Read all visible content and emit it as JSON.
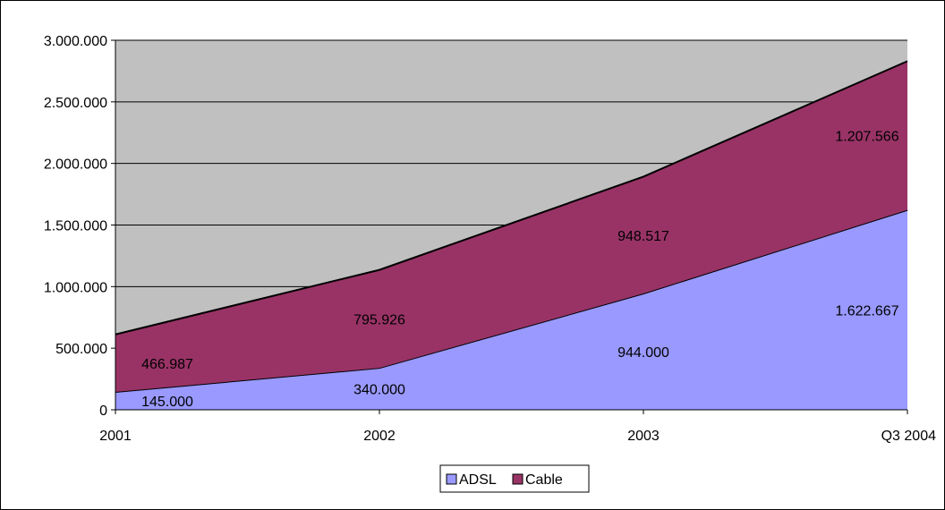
{
  "chart_data": {
    "type": "area",
    "stacked": true,
    "categories": [
      "2001",
      "2002",
      "2003",
      "Q3 2004"
    ],
    "series": [
      {
        "name": "ADSL",
        "values": [
          145000,
          340000,
          944000,
          1622667
        ],
        "labels": [
          "145.000",
          "340.000",
          "944.000",
          "1.622.667"
        ]
      },
      {
        "name": "Cable",
        "values": [
          466987,
          795926,
          948517,
          1207566
        ],
        "labels": [
          "466.987",
          "795.926",
          "948.517",
          "1.207.566"
        ]
      }
    ],
    "ylim": [
      0,
      3000000
    ],
    "y_ticks": [
      0,
      500000,
      1000000,
      1500000,
      2000000,
      2500000,
      3000000
    ],
    "y_tick_labels": [
      "0",
      "500.000",
      "1.000.000",
      "1.500.000",
      "2.000.000",
      "2.500.000",
      "3.000.000"
    ],
    "grid": true,
    "legend_position": "bottom",
    "colors": {
      "ADSL": "#9999ff",
      "Cable": "#993366",
      "plot_background": "#c0c0c0",
      "gridline": "#000000"
    }
  }
}
